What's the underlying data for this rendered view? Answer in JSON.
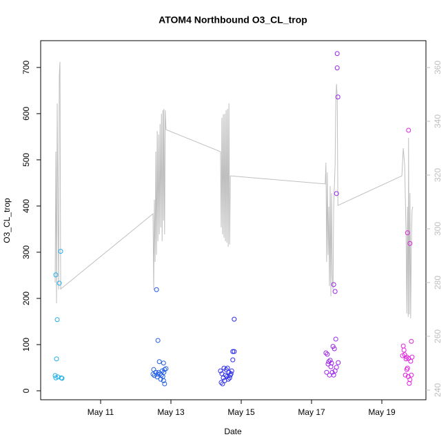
{
  "chart_data": {
    "type": "scatter",
    "title": "ATOM4 Northbound O3_CL_trop",
    "xlabel": "Date",
    "ylabel": "O3_CL_trop",
    "xlim": [
      9.294,
      20.255
    ],
    "ylim": [
      -19.4,
      758
    ],
    "y2lim": [
      236.4,
      370
    ],
    "xticks": [
      {
        "value": 11,
        "label": "May 11"
      },
      {
        "value": 13,
        "label": "May 13"
      },
      {
        "value": 15,
        "label": "May 15"
      },
      {
        "value": 17,
        "label": "May 17"
      },
      {
        "value": 19,
        "label": "May 19"
      }
    ],
    "yticks": [
      0,
      100,
      200,
      300,
      400,
      500,
      600,
      700
    ],
    "y2ticks": [
      240,
      260,
      280,
      300,
      320,
      340,
      360
    ],
    "series": [
      {
        "color": "#1eaee8",
        "x": [
          9.725,
          9.824,
          9.863,
          9.765,
          9.745,
          9.706,
          9.784,
          9.725,
          9.882,
          9.902
        ],
        "values": [
          251,
          233,
          302,
          154,
          69,
          33,
          30,
          28,
          28,
          27
        ]
      },
      {
        "color": "#1e5ae6",
        "x": [
          12.63,
          12.59,
          12.67,
          12.79,
          12.51,
          12.57,
          12.49,
          12.53,
          12.61,
          12.65,
          12.69,
          12.73,
          12.77,
          12.8,
          12.82,
          12.86,
          12.71,
          12.79,
          12.82,
          12.75,
          12.63
        ],
        "values": [
          109,
          219,
          63,
          60,
          46,
          40,
          36,
          33,
          30,
          40,
          37,
          34,
          31,
          40,
          46,
          48,
          25,
          22,
          15,
          43,
          36
        ]
      },
      {
        "color": "#2a2ae8",
        "x": [
          14.8,
          14.76,
          14.8,
          14.76,
          14.41,
          14.45,
          14.49,
          14.53,
          14.47,
          14.57,
          14.61,
          14.65,
          14.69,
          14.73,
          14.59,
          14.63,
          14.55,
          14.67,
          14.71,
          14.51,
          14.43
        ],
        "values": [
          155,
          85,
          85,
          67,
          43,
          37,
          28,
          22,
          15,
          46,
          49,
          40,
          34,
          43,
          31,
          25,
          34,
          28,
          37,
          49,
          18
        ]
      },
      {
        "color": "#9a22e8",
        "x": [
          17.73,
          17.73,
          17.75,
          17.71,
          17.63,
          17.67,
          17.69,
          17.61,
          17.65,
          17.41,
          17.45,
          17.49,
          17.53,
          17.57,
          17.76,
          17.43,
          17.51,
          17.59,
          17.63,
          17.67,
          17.47,
          17.55,
          17.71
        ],
        "values": [
          730,
          699,
          636,
          427,
          230,
          215,
          112,
          96,
          91,
          82,
          79,
          63,
          66,
          60,
          61,
          40,
          34,
          40,
          34,
          43,
          58,
          52,
          51
        ]
      },
      {
        "color": "#e020e0",
        "x": [
          19.76,
          19.73,
          19.8,
          19.84,
          19.61,
          19.63,
          19.59,
          19.65,
          19.71,
          19.86,
          19.69,
          19.76,
          19.82,
          19.73,
          19.71,
          19.67,
          19.75,
          19.84,
          19.8,
          19.78
        ],
        "values": [
          564,
          342,
          319,
          107,
          97,
          88,
          76,
          78,
          73,
          73,
          69,
          70,
          64,
          49,
          46,
          34,
          31,
          34,
          24,
          16
        ]
      },
      {
        "color": "#bebebe",
        "axis": "y2",
        "x": [
          9.706,
          9.725,
          9.745,
          9.765,
          9.784,
          9.804,
          9.824,
          9.843,
          9.863,
          9.882,
          9.902,
          12.49,
          12.51,
          12.53,
          12.55,
          12.57,
          12.59,
          12.61,
          12.63,
          12.65,
          12.67,
          12.69,
          12.71,
          12.73,
          12.75,
          12.77,
          12.79,
          12.8,
          12.82,
          12.84,
          12.86,
          14.41,
          14.43,
          14.45,
          14.47,
          14.49,
          14.51,
          14.53,
          14.55,
          14.57,
          14.59,
          14.61,
          14.63,
          14.65,
          14.67,
          14.69,
          17.39,
          17.41,
          17.43,
          17.45,
          17.47,
          17.49,
          17.51,
          17.53,
          17.55,
          17.57,
          17.59,
          17.61,
          17.63,
          17.65,
          17.67,
          17.69,
          17.71,
          17.73,
          17.75,
          19.57,
          19.61,
          19.65,
          19.69,
          19.71,
          19.73,
          19.75,
          19.76,
          19.78,
          19.8,
          19.82,
          19.84,
          19.86,
          19.88
        ],
        "values": [
          280.0,
          328.7,
          272.3,
          346.7,
          308.2,
          277.4,
          356.9,
          362.1,
          277.4,
          278.0,
          278.0,
          305.6,
          277.4,
          310.8,
          287.7,
          328.7,
          290.3,
          336.4,
          295.4,
          335.1,
          297.9,
          339.0,
          300.5,
          342.8,
          295.4,
          344.1,
          303.1,
          344.6,
          297.9,
          344.1,
          336.9,
          328.7,
          300.5,
          341.3,
          297.9,
          342.6,
          296.7,
          342.8,
          295.4,
          344.1,
          294.9,
          344.6,
          293.3,
          346.7,
          294.1,
          319.7,
          316.7,
          324.6,
          287.7,
          321.0,
          290.3,
          308.2,
          278.7,
          315.9,
          274.9,
          313.3,
          282.6,
          277.4,
          308.2,
          315.9,
          323.6,
          346.7,
          353.8,
          349.2,
          308.7,
          319.7,
          330.0,
          323.6,
          297.9,
          268.5,
          308.2,
          267.2,
          333.8,
          268.2,
          313.3,
          266.7,
          295.4,
          306.9,
          308.2
        ]
      }
    ]
  }
}
